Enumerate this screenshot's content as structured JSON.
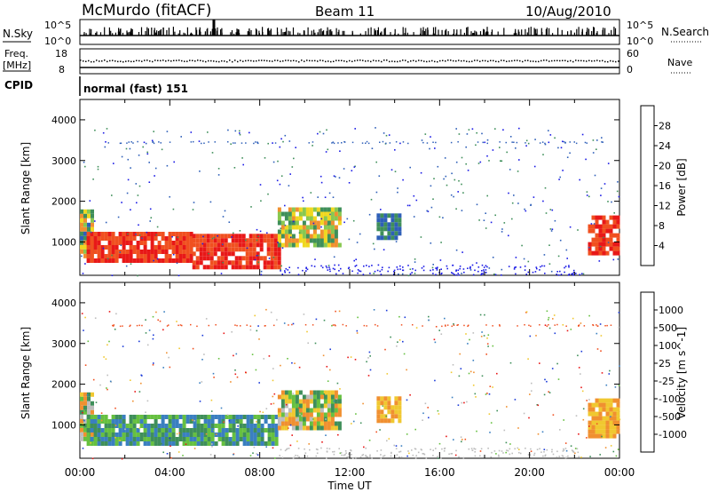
{
  "header": {
    "station": "McMurdo (fitACF)",
    "beam": "Beam 11",
    "date": "10/Aug/2010"
  },
  "top_panels": {
    "nsky_label": "N.Sky",
    "nsearch_label": "N.Search",
    "nsky_ticks": [
      "10^5",
      "10^0"
    ],
    "nsearch_ticks": [
      "10^5",
      "10^0"
    ],
    "freq_label_1": "Freq.",
    "freq_label_2": "[MHz]",
    "freq_ticks": [
      "18",
      "8"
    ],
    "nave_label": "Nave",
    "nave_ticks": [
      "60",
      "0"
    ],
    "cpid_label": "CPID",
    "cpid_value": "normal (fast) 151"
  },
  "chart_data": [
    {
      "type": "heatmap",
      "title": "",
      "xlabel": "Time UT",
      "ylabel": "Slant Range [km]",
      "xlim_hours": [
        0,
        24
      ],
      "ylim_km": [
        180,
        4500
      ],
      "x_ticks": [
        "00:00",
        "04:00",
        "08:00",
        "12:00",
        "16:00",
        "20:00",
        "00:00"
      ],
      "y_ticks": [
        "1000",
        "2000",
        "3000",
        "4000"
      ],
      "colorbar": {
        "label": "Power [dB]",
        "ticks": [
          "4",
          "8",
          "12",
          "16",
          "20",
          "24",
          "28"
        ],
        "colors": [
          "#1a1ae6",
          "#2e5fb8",
          "#3f8f5a",
          "#88c850",
          "#f0d820",
          "#f09030",
          "#f05020",
          "#e81818"
        ]
      },
      "echo_regions": [
        {
          "t0": 0.0,
          "t1": 0.5,
          "r0": 600,
          "r1": 1800,
          "level": "mixed"
        },
        {
          "t0": 0.3,
          "t1": 5.0,
          "r0": 550,
          "r1": 1250,
          "level": "high"
        },
        {
          "t0": 5.0,
          "t1": 8.8,
          "r0": 400,
          "r1": 1200,
          "level": "high"
        },
        {
          "t0": 8.8,
          "t1": 11.5,
          "r0": 950,
          "r1": 1850,
          "level": "medium"
        },
        {
          "t0": 13.2,
          "t1": 14.2,
          "r0": 1100,
          "r1": 1700,
          "level": "low"
        },
        {
          "t0": 22.6,
          "t1": 24.0,
          "r0": 700,
          "r1": 1650,
          "level": "high"
        }
      ]
    },
    {
      "type": "heatmap",
      "title": "",
      "xlabel": "Time UT",
      "ylabel": "Slant Range [km]",
      "xlim_hours": [
        0,
        24
      ],
      "ylim_km": [
        180,
        4500
      ],
      "x_ticks": [
        "00:00",
        "04:00",
        "08:00",
        "12:00",
        "16:00",
        "20:00",
        "00:00"
      ],
      "y_ticks": [
        "1000",
        "2000",
        "3000",
        "4000"
      ],
      "colorbar": {
        "label": "Velocity [m s^-1]",
        "ticks": [
          "1000",
          "500",
          "100",
          "25",
          "-25",
          "-100",
          "-500",
          "-1000"
        ],
        "colors": [
          "#1a3ad8",
          "#3a7fc0",
          "#3f8f5a",
          "#66c040",
          "#bdbdbd",
          "#f0c830",
          "#f09030",
          "#f05020",
          "#e81818"
        ]
      },
      "echo_regions": [
        {
          "t0": 0.0,
          "t1": 0.5,
          "r0": 600,
          "r1": 1800,
          "level": "mixed"
        },
        {
          "t0": 0.3,
          "t1": 8.8,
          "r0": 500,
          "r1": 1250,
          "level": "positive"
        },
        {
          "t0": 8.8,
          "t1": 11.5,
          "r0": 950,
          "r1": 1850,
          "level": "mixed"
        },
        {
          "t0": 13.2,
          "t1": 14.2,
          "r0": 1100,
          "r1": 1700,
          "level": "negative"
        },
        {
          "t0": 22.6,
          "t1": 24.0,
          "r0": 700,
          "r1": 1650,
          "level": "negative"
        }
      ]
    }
  ]
}
